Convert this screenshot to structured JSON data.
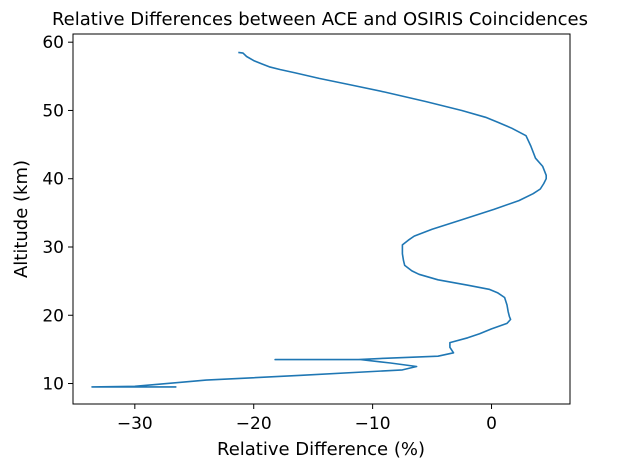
{
  "chart_data": {
    "type": "line",
    "title": "Relative Differences between ACE and OSIRIS Coincidences",
    "xlabel": "Relative Difference (%)",
    "ylabel": "Altitude (km)",
    "xlim": [
      -35.2,
      6.6
    ],
    "ylim": [
      7.0,
      61.2
    ],
    "xticks": [
      -30,
      -20,
      -10,
      0
    ],
    "xtick_labels": [
      "−30",
      "−20",
      "−10",
      "0"
    ],
    "yticks": [
      10,
      20,
      30,
      40,
      50,
      60
    ],
    "ytick_labels": [
      "10",
      "20",
      "30",
      "40",
      "50",
      "60"
    ],
    "grid": false,
    "series": [
      {
        "color": "#1f77b4",
        "points": [
          [
            -21.3,
            58.5
          ],
          [
            -20.9,
            58.4
          ],
          [
            -20.6,
            57.9
          ],
          [
            -20.0,
            57.3
          ],
          [
            -19.3,
            56.8
          ],
          [
            -18.7,
            56.4
          ],
          [
            -17.8,
            56.0
          ],
          [
            -16.5,
            55.5
          ],
          [
            -14.5,
            54.7
          ],
          [
            -12.0,
            53.8
          ],
          [
            -9.0,
            52.7
          ],
          [
            -5.5,
            51.3
          ],
          [
            -2.5,
            50.0
          ],
          [
            -0.5,
            49.0
          ],
          [
            0.5,
            48.3
          ],
          [
            1.7,
            47.4
          ],
          [
            2.9,
            46.3
          ],
          [
            3.3,
            44.8
          ],
          [
            3.7,
            43.0
          ],
          [
            4.3,
            41.8
          ],
          [
            4.6,
            40.5
          ],
          [
            4.6,
            40.0
          ],
          [
            4.4,
            39.3
          ],
          [
            4.1,
            38.5
          ],
          [
            3.5,
            37.8
          ],
          [
            2.3,
            36.8
          ],
          [
            0.2,
            35.5
          ],
          [
            -2.5,
            34.0
          ],
          [
            -5.0,
            32.6
          ],
          [
            -6.5,
            31.6
          ],
          [
            -7.0,
            31.0
          ],
          [
            -7.5,
            30.3
          ],
          [
            -7.5,
            29.0
          ],
          [
            -7.4,
            28.0
          ],
          [
            -7.3,
            27.3
          ],
          [
            -6.7,
            26.5
          ],
          [
            -6.1,
            26.0
          ],
          [
            -4.5,
            25.2
          ],
          [
            -2.0,
            24.4
          ],
          [
            -0.2,
            23.8
          ],
          [
            0.5,
            23.3
          ],
          [
            1.1,
            22.6
          ],
          [
            1.3,
            21.5
          ],
          [
            1.4,
            20.5
          ],
          [
            1.5,
            19.8
          ],
          [
            1.6,
            19.4
          ],
          [
            1.3,
            18.8
          ],
          [
            0.0,
            18.0
          ],
          [
            -1.0,
            17.3
          ],
          [
            -2.0,
            16.7
          ],
          [
            -3.5,
            16.0
          ],
          [
            -3.5,
            15.3
          ],
          [
            -3.2,
            14.5
          ],
          [
            -4.5,
            14.0
          ],
          [
            -9.0,
            13.7
          ],
          [
            -11.2,
            13.5
          ],
          [
            -18.2,
            13.5
          ],
          [
            -11.0,
            13.5
          ],
          [
            -8.5,
            13.0
          ],
          [
            -6.3,
            12.5
          ],
          [
            -7.5,
            12.0
          ],
          [
            -16.0,
            11.2
          ],
          [
            -24.0,
            10.5
          ],
          [
            -30.0,
            9.6
          ],
          [
            -33.6,
            9.5
          ],
          [
            -26.5,
            9.5
          ]
        ]
      }
    ]
  }
}
